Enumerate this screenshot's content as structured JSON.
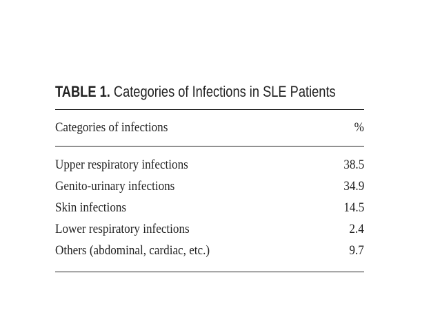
{
  "title": {
    "label": "TABLE 1.",
    "text": "Categories of Infections in SLE Patients"
  },
  "table": {
    "header": [
      "Categories of infections",
      "%"
    ],
    "rows": [
      [
        "Upper respiratory infections",
        38.5
      ],
      [
        "Genito-urinary infections",
        34.9
      ],
      [
        "Skin infections",
        14.5
      ],
      [
        "Lower respiratory infections",
        2.4
      ],
      [
        "Others (abdominal, cardiac, etc.)",
        9.7
      ]
    ]
  }
}
